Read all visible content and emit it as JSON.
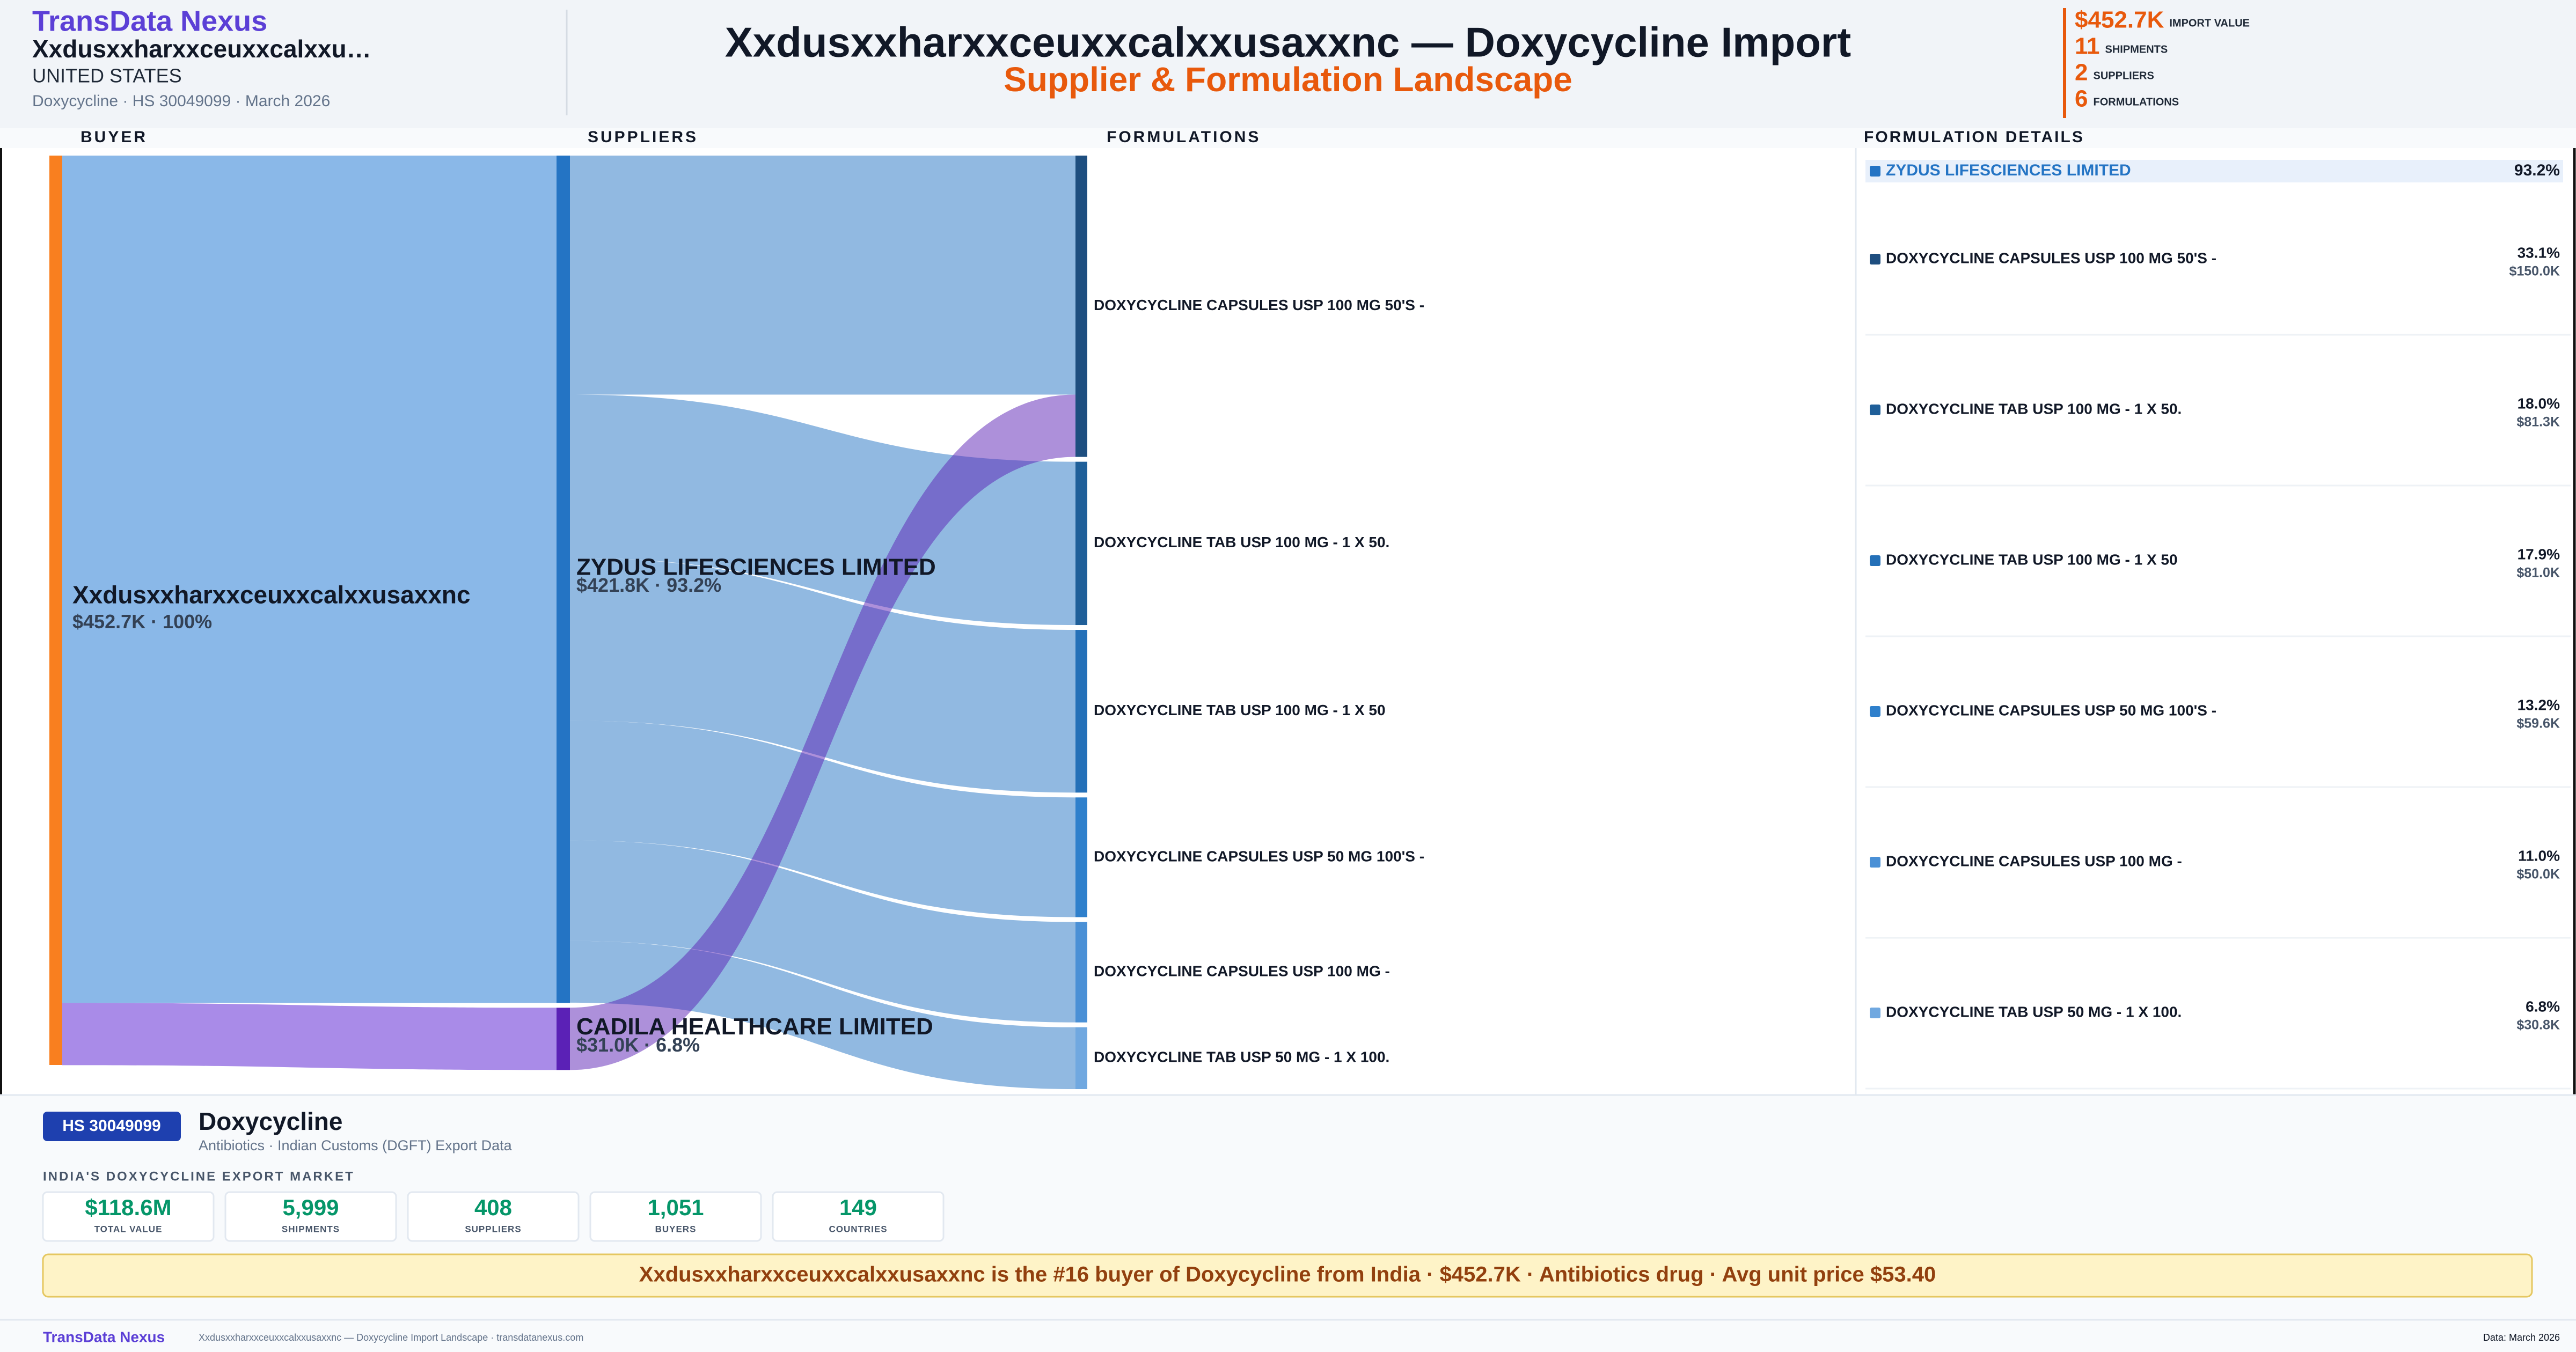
{
  "header": {
    "brand": "TransData Nexus",
    "buyer": "Xxdusxxharxxceuxxcalxxu…",
    "country": "UNITED STATES",
    "meta": "Doxycycline · HS 30049099 · March 2026",
    "title": "Xxdusxxharxxceuxxcalxxusaxxnc — Doxycycline Import",
    "subtitle": "Supplier & Formulation Landscape",
    "kpis": [
      {
        "value": "$452.7K",
        "label": "IMPORT VALUE"
      },
      {
        "value": "11",
        "label": "SHIPMENTS"
      },
      {
        "value": "2",
        "label": "SUPPLIERS"
      },
      {
        "value": "6",
        "label": "FORMULATIONS"
      }
    ]
  },
  "chart_data": {
    "type": "sankey",
    "column_titles": [
      "BUYER",
      "SUPPLIERS",
      "FORMULATIONS"
    ],
    "buyer": {
      "name": "Xxdusxxharxxceuxxcalxxusaxxnc",
      "value": 452.7,
      "value_label": "$452.7K · 100%",
      "color": "#f97f1f"
    },
    "suppliers": [
      {
        "name": "ZYDUS LIFESCIENCES LIMITED",
        "value": 421.8,
        "value_label": "$421.8K · 93.2%",
        "color": "#2474c4",
        "link_color": "#8ab8e8"
      },
      {
        "name": "CADILA HEALTHCARE LIMITED",
        "value": 31.0,
        "value_label": "$31.0K · 6.8%",
        "color": "#5b21b6",
        "link_color": "#a98be8"
      }
    ],
    "formulations": [
      {
        "name": "DOXYCYCLINE CAPSULES USP 100 MG 50'S -",
        "value": 150.0,
        "value_label": "$150.0K",
        "share_label": "33.1%",
        "color": "#1e4e7f"
      },
      {
        "name": "DOXYCYCLINE TAB USP 100 MG - 1 X 50.",
        "value": 81.3,
        "value_label": "$81.3K",
        "share_label": "18.0%",
        "color": "#1f5f99"
      },
      {
        "name": "DOXYCYCLINE TAB USP 100 MG - 1 X 50",
        "value": 81.0,
        "value_label": "$81.0K",
        "share_label": "17.9%",
        "color": "#2470b8"
      },
      {
        "name": "DOXYCYCLINE CAPSULES USP 50 MG 100'S -",
        "value": 59.6,
        "value_label": "$59.6K",
        "share_label": "13.2%",
        "color": "#2f80cc"
      },
      {
        "name": "DOXYCYCLINE CAPSULES USP 100 MG -",
        "value": 50.0,
        "value_label": "$50.0K",
        "share_label": "11.0%",
        "color": "#4a90d6"
      },
      {
        "name": "DOXYCYCLINE TAB USP 50 MG - 1 X 100.",
        "value": 30.8,
        "value_label": "$30.8K",
        "share_label": "6.8%",
        "color": "#70a8e0"
      }
    ],
    "links": [
      {
        "source": "ZYDUS LIFESCIENCES LIMITED",
        "target": "DOXYCYCLINE CAPSULES USP 100 MG 50'S -",
        "value": 119.0
      },
      {
        "source": "ZYDUS LIFESCIENCES LIMITED",
        "target": "DOXYCYCLINE TAB USP 100 MG - 1 X 50.",
        "value": 81.3
      },
      {
        "source": "ZYDUS LIFESCIENCES LIMITED",
        "target": "DOXYCYCLINE TAB USP 100 MG - 1 X 50",
        "value": 81.0
      },
      {
        "source": "ZYDUS LIFESCIENCES LIMITED",
        "target": "DOXYCYCLINE CAPSULES USP 50 MG 100'S -",
        "value": 59.6
      },
      {
        "source": "ZYDUS LIFESCIENCES LIMITED",
        "target": "DOXYCYCLINE CAPSULES USP 100 MG -",
        "value": 50.0
      },
      {
        "source": "ZYDUS LIFESCIENCES LIMITED",
        "target": "DOXYCYCLINE TAB USP 50 MG - 1 X 100.",
        "value": 30.8
      },
      {
        "source": "CADILA HEALTHCARE LIMITED",
        "target": "DOXYCYCLINE CAPSULES USP 100 MG 50'S -",
        "value": 31.0
      }
    ],
    "details": {
      "title": "FORMULATION DETAILS",
      "supplier": "ZYDUS LIFESCIENCES LIMITED",
      "share_label": "93.2%"
    }
  },
  "footer": {
    "hs_badge": "HS 30049099",
    "product": "Doxycycline",
    "product_sub": "Antibiotics · Indian Customs (DGFT) Export Data",
    "market_title": "INDIA'S DOXYCYCLINE EXPORT MARKET",
    "stats": [
      {
        "value": "$118.6M",
        "label": "TOTAL VALUE"
      },
      {
        "value": "5,999",
        "label": "SHIPMENTS"
      },
      {
        "value": "408",
        "label": "SUPPLIERS"
      },
      {
        "value": "1,051",
        "label": "BUYERS"
      },
      {
        "value": "149",
        "label": "COUNTRIES"
      }
    ],
    "banner": "Xxdusxxharxxceuxxcalxxusaxxnc is the #16 buyer of Doxycycline from India · $452.7K · Antibiotics drug · Avg unit price $53.40",
    "brand": "TransData Nexus",
    "caption": "Xxdusxxharxxceuxxcalxxusaxxnc — Doxycycline Import Landscape · transdatanexus.com",
    "data_note": "Data: March 2026"
  }
}
